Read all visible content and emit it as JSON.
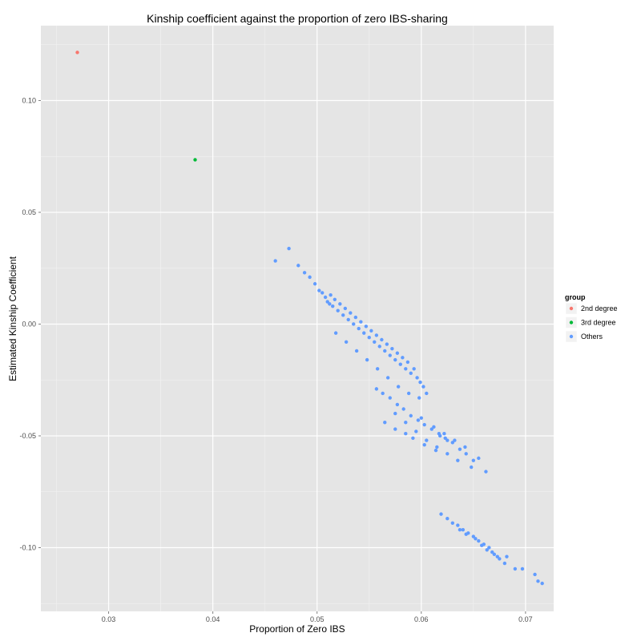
{
  "chart_data": {
    "type": "scatter",
    "title": "Kinship coefficient against the proportion of zero IBS-sharing",
    "xlabel": "Proportion of Zero IBS",
    "ylabel": "Estimated Kinship Coefficient",
    "xlim": [
      0.0235,
      0.0727
    ],
    "ylim": [
      -0.1285,
      0.1335
    ],
    "x_ticks": [
      0.03,
      0.04,
      0.05,
      0.06,
      0.07
    ],
    "x_tick_labels": [
      "0.03",
      "0.04",
      "0.05",
      "0.06",
      "0.07"
    ],
    "y_ticks": [
      0.1,
      0.05,
      0.0,
      -0.05,
      -0.1
    ],
    "y_tick_labels": [
      "0.10",
      "0.05",
      "0.00",
      "-0.05",
      "-0.10"
    ],
    "grid": true,
    "background": "#e5e5e5",
    "legend": {
      "title": "group",
      "position": "right",
      "entries": [
        {
          "label": "2nd degree",
          "color": "#f8766d"
        },
        {
          "label": "3rd degree",
          "color": "#00ba38"
        },
        {
          "label": "Others",
          "color": "#619cff"
        }
      ]
    },
    "series": [
      {
        "name": "2nd degree",
        "color": "#f8766d",
        "points": [
          [
            0.027,
            0.1215
          ]
        ]
      },
      {
        "name": "3rd degree",
        "color": "#00ba38",
        "points": [
          [
            0.0383,
            0.0735
          ]
        ]
      },
      {
        "name": "Others",
        "color": "#619cff",
        "points": [
          [
            0.046,
            0.0283
          ],
          [
            0.0473,
            0.0338
          ],
          [
            0.0482,
            0.0262
          ],
          [
            0.0488,
            0.023
          ],
          [
            0.0493,
            0.021
          ],
          [
            0.0498,
            0.018
          ],
          [
            0.0502,
            0.015
          ],
          [
            0.0505,
            0.014
          ],
          [
            0.0508,
            0.012
          ],
          [
            0.051,
            0.01
          ],
          [
            0.0512,
            0.009
          ],
          [
            0.0513,
            0.013
          ],
          [
            0.0515,
            0.008
          ],
          [
            0.0517,
            0.011
          ],
          [
            0.052,
            0.006
          ],
          [
            0.0522,
            0.009
          ],
          [
            0.0525,
            0.004
          ],
          [
            0.0527,
            0.007
          ],
          [
            0.053,
            0.002
          ],
          [
            0.0532,
            0.005
          ],
          [
            0.0535,
            0.0
          ],
          [
            0.0537,
            0.003
          ],
          [
            0.054,
            -0.002
          ],
          [
            0.0542,
            0.001
          ],
          [
            0.0545,
            -0.004
          ],
          [
            0.0547,
            -0.001
          ],
          [
            0.055,
            -0.006
          ],
          [
            0.0552,
            -0.003
          ],
          [
            0.0555,
            -0.008
          ],
          [
            0.0557,
            -0.005
          ],
          [
            0.056,
            -0.01
          ],
          [
            0.0562,
            -0.007
          ],
          [
            0.0565,
            -0.012
          ],
          [
            0.0567,
            -0.009
          ],
          [
            0.057,
            -0.014
          ],
          [
            0.0572,
            -0.011
          ],
          [
            0.0575,
            -0.016
          ],
          [
            0.0577,
            -0.013
          ],
          [
            0.058,
            -0.018
          ],
          [
            0.0582,
            -0.015
          ],
          [
            0.0585,
            -0.02
          ],
          [
            0.0587,
            -0.017
          ],
          [
            0.059,
            -0.022
          ],
          [
            0.0593,
            -0.02
          ],
          [
            0.0596,
            -0.024
          ],
          [
            0.0599,
            -0.026
          ],
          [
            0.0602,
            -0.028
          ],
          [
            0.0605,
            -0.031
          ],
          [
            0.0518,
            -0.004
          ],
          [
            0.0528,
            -0.008
          ],
          [
            0.0538,
            -0.012
          ],
          [
            0.0548,
            -0.016
          ],
          [
            0.0558,
            -0.02
          ],
          [
            0.0568,
            -0.024
          ],
          [
            0.0578,
            -0.028
          ],
          [
            0.0588,
            -0.031
          ],
          [
            0.0598,
            -0.033
          ],
          [
            0.0557,
            -0.029
          ],
          [
            0.0563,
            -0.031
          ],
          [
            0.057,
            -0.033
          ],
          [
            0.0577,
            -0.036
          ],
          [
            0.0583,
            -0.038
          ],
          [
            0.059,
            -0.041
          ],
          [
            0.0597,
            -0.043
          ],
          [
            0.0603,
            -0.045
          ],
          [
            0.061,
            -0.047
          ],
          [
            0.0617,
            -0.049
          ],
          [
            0.0623,
            -0.051
          ],
          [
            0.063,
            -0.053
          ],
          [
            0.0637,
            -0.056
          ],
          [
            0.0643,
            -0.058
          ],
          [
            0.065,
            -0.061
          ],
          [
            0.0575,
            -0.04
          ],
          [
            0.0585,
            -0.044
          ],
          [
            0.0595,
            -0.048
          ],
          [
            0.0605,
            -0.052
          ],
          [
            0.0615,
            -0.055
          ],
          [
            0.0625,
            -0.058
          ],
          [
            0.0635,
            -0.061
          ],
          [
            0.06,
            -0.042
          ],
          [
            0.0612,
            -0.046
          ],
          [
            0.0622,
            -0.049
          ],
          [
            0.0632,
            -0.052
          ],
          [
            0.0642,
            -0.055
          ],
          [
            0.0655,
            -0.06
          ],
          [
            0.0662,
            -0.066
          ],
          [
            0.0648,
            -0.064
          ],
          [
            0.0625,
            -0.052
          ],
          [
            0.0618,
            -0.05
          ],
          [
            0.0585,
            -0.049
          ],
          [
            0.0592,
            -0.051
          ],
          [
            0.0603,
            -0.054
          ],
          [
            0.0614,
            -0.0565
          ],
          [
            0.0565,
            -0.044
          ],
          [
            0.0575,
            -0.047
          ],
          [
            0.0619,
            -0.085
          ],
          [
            0.0625,
            -0.087
          ],
          [
            0.063,
            -0.089
          ],
          [
            0.0635,
            -0.09
          ],
          [
            0.064,
            -0.092
          ],
          [
            0.0645,
            -0.0935
          ],
          [
            0.065,
            -0.095
          ],
          [
            0.0655,
            -0.097
          ],
          [
            0.066,
            -0.0985
          ],
          [
            0.0665,
            -0.1
          ],
          [
            0.067,
            -0.103
          ],
          [
            0.0675,
            -0.105
          ],
          [
            0.068,
            -0.107
          ],
          [
            0.0637,
            -0.092
          ],
          [
            0.0643,
            -0.094
          ],
          [
            0.0652,
            -0.096
          ],
          [
            0.0658,
            -0.099
          ],
          [
            0.0663,
            -0.101
          ],
          [
            0.0668,
            -0.102
          ],
          [
            0.0673,
            -0.104
          ],
          [
            0.0682,
            -0.104
          ],
          [
            0.069,
            -0.1095
          ],
          [
            0.0697,
            -0.1095
          ],
          [
            0.0709,
            -0.112
          ],
          [
            0.0712,
            -0.115
          ],
          [
            0.0716,
            -0.116
          ]
        ]
      }
    ]
  }
}
